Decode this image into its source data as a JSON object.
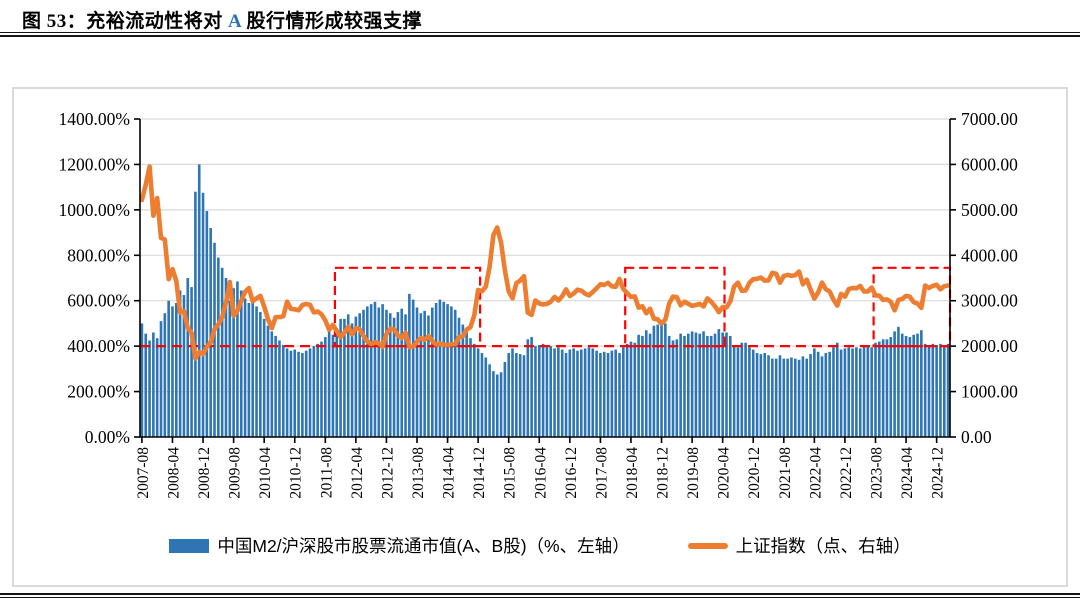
{
  "title": {
    "label": "图 53：",
    "pre": "充裕流动性将对 ",
    "highlight": "A",
    "highlight_color": "#2E74B5",
    "post": " 股行情形成较强支撑"
  },
  "legend": [
    {
      "label": "中国M2/沪深股市股票流通市值(A、B股)（%、左轴）",
      "color": "#2E75B6",
      "type": "bar"
    },
    {
      "label": "上证指数（点、右轴）",
      "color": "#ED7D31",
      "type": "line"
    }
  ],
  "chart_data": {
    "type": "bar+line",
    "frequency": "monthly",
    "start": "2007-08",
    "end": "2025-03",
    "grid": true,
    "grid_color": "#D9D9D9",
    "left_axis": {
      "min": 0,
      "max": 1400,
      "step": 200,
      "tick_labels": [
        "0.00%",
        "200.00%",
        "400.00%",
        "600.00%",
        "800.00%",
        "1000.00%",
        "1200.00%",
        "1400.00%"
      ]
    },
    "right_axis": {
      "min": 0,
      "max": 7000,
      "step": 1000,
      "tick_labels": [
        "0.00",
        "1000.00",
        "2000.00",
        "3000.00",
        "4000.00",
        "5000.00",
        "6000.00",
        "7000.00"
      ]
    },
    "x_ticks": {
      "every_n_months": 8,
      "labels": [
        "2007-08",
        "2008-04",
        "2008-12",
        "2009-08",
        "2010-04",
        "2010-12",
        "2011-08",
        "2012-04",
        "2012-12",
        "2013-08",
        "2014-04",
        "2014-12",
        "2015-08",
        "2016-04",
        "2016-12",
        "2017-08",
        "2018-04",
        "2018-12",
        "2019-08",
        "2020-04",
        "2020-12",
        "2021-08",
        "2022-04",
        "2022-12",
        "2023-08",
        "2024-04",
        "2024-12"
      ]
    },
    "series": [
      {
        "name": "中国M2/沪深股市股票流通市值(A、B股)（%、左轴）",
        "type": "bar",
        "axis": "left",
        "unit": "%",
        "color": "#2E75B6",
        "values": [
          500,
          455,
          425,
          460,
          435,
          510,
          545,
          600,
          575,
          590,
          645,
          625,
          700,
          660,
          1080,
          1200,
          1075,
          995,
          920,
          855,
          790,
          745,
          700,
          600,
          655,
          685,
          645,
          610,
          590,
          600,
          575,
          550,
          520,
          490,
          465,
          445,
          425,
          405,
          390,
          380,
          385,
          375,
          370,
          380,
          390,
          400,
          410,
          420,
          440,
          470,
          450,
          480,
          520,
          520,
          540,
          500,
          530,
          545,
          560,
          575,
          585,
          595,
          570,
          585,
          560,
          545,
          525,
          550,
          565,
          540,
          630,
          605,
          570,
          545,
          555,
          535,
          570,
          590,
          605,
          595,
          585,
          575,
          560,
          525,
          495,
          465,
          435,
          410,
          390,
          370,
          350,
          320,
          290,
          275,
          285,
          330,
          370,
          390,
          370,
          365,
          360,
          430,
          440,
          400,
          405,
          410,
          405,
          400,
          390,
          395,
          385,
          370,
          385,
          390,
          380,
          385,
          390,
          395,
          390,
          380,
          370,
          375,
          370,
          380,
          385,
          370,
          395,
          410,
          420,
          415,
          450,
          445,
          470,
          455,
          490,
          495,
          515,
          500,
          445,
          425,
          430,
          455,
          445,
          455,
          465,
          460,
          455,
          465,
          445,
          445,
          455,
          475,
          460,
          460,
          445,
          405,
          395,
          415,
          415,
          395,
          385,
          370,
          365,
          370,
          360,
          345,
          345,
          360,
          345,
          345,
          350,
          345,
          340,
          355,
          345,
          365,
          390,
          375,
          355,
          370,
          375,
          395,
          415,
          385,
          390,
          395,
          390,
          395,
          390,
          405,
          405,
          395,
          415,
          420,
          430,
          430,
          440,
          465,
          485,
          455,
          445,
          440,
          450,
          455,
          470,
          410,
          405,
          410,
          405,
          410,
          405,
          410
        ]
      },
      {
        "name": "上证指数（点、右轴）",
        "type": "line",
        "axis": "right",
        "unit": "点",
        "color": "#ED7D31",
        "values": [
          5218,
          5552,
          5955,
          4872,
          5262,
          4383,
          4348,
          3473,
          3694,
          3433,
          2736,
          2776,
          2397,
          2294,
          1729,
          1871,
          1821,
          1991,
          2082,
          2373,
          2478,
          2633,
          2959,
          3412,
          2668,
          2779,
          2995,
          3195,
          3277,
          2989,
          3052,
          3109,
          2871,
          2592,
          2398,
          2638,
          2639,
          2656,
          2979,
          2820,
          2808,
          2790,
          2905,
          2928,
          2911,
          2743,
          2762,
          2701,
          2567,
          2359,
          2468,
          2333,
          2199,
          2293,
          2428,
          2263,
          2396,
          2372,
          2225,
          2104,
          2047,
          2086,
          2068,
          1980,
          2269,
          2385,
          2366,
          2237,
          2178,
          2301,
          1979,
          1994,
          2098,
          2175,
          2141,
          2221,
          2116,
          2033,
          2056,
          2033,
          2026,
          2039,
          2048,
          2201,
          2217,
          2364,
          2420,
          2683,
          3235,
          3210,
          3310,
          3748,
          4442,
          4612,
          4277,
          3664,
          3206,
          3053,
          3383,
          3445,
          3539,
          2738,
          2688,
          3004,
          2938,
          2917,
          2930,
          2979,
          3085,
          3005,
          3100,
          3250,
          3104,
          3159,
          3242,
          3223,
          3155,
          3117,
          3192,
          3273,
          3361,
          3349,
          3393,
          3317,
          3307,
          3481,
          3259,
          3169,
          3082,
          3095,
          2847,
          2876,
          2725,
          2821,
          2603,
          2588,
          2494,
          2585,
          2941,
          3091,
          3078,
          2899,
          2979,
          2933,
          2886,
          2905,
          2929,
          2872,
          3050,
          2977,
          2880,
          2750,
          2860,
          2852,
          2985,
          3310,
          3396,
          3218,
          3225,
          3392,
          3473,
          3483,
          3509,
          3442,
          3447,
          3615,
          3591,
          3397,
          3544,
          3568,
          3547,
          3564,
          3640,
          3361,
          3462,
          3252,
          3047,
          3186,
          3399,
          3253,
          3202,
          3024,
          2893,
          3151,
          3089,
          3256,
          3280,
          3273,
          3323,
          3205,
          3202,
          3291,
          3120,
          3110,
          3019,
          3030,
          2975,
          2789,
          3015,
          3041,
          3105,
          3087,
          2967,
          2938,
          2842,
          3336,
          3280,
          3326,
          3352,
          3251,
          3321,
          3336
        ]
      }
    ],
    "reference_line": {
      "value_left_axis": 400,
      "value_right_axis": 2000,
      "color": "#FF0000",
      "style": "dashed"
    },
    "highlight_boxes": [
      {
        "from": "2011-11",
        "to": "2014-12",
        "from_index": 51,
        "to_index": 88,
        "top_left_axis": 745,
        "color": "#FF0000"
      },
      {
        "from": "2018-03",
        "to": "2020-04",
        "from_index": 127,
        "to_index": 152,
        "top_left_axis": 745,
        "color": "#FF0000"
      },
      {
        "from": "2023-08",
        "to": "2025-03",
        "from_index": 192,
        "to_index": 211,
        "top_left_axis": 745,
        "color": "#FF0000"
      }
    ]
  }
}
